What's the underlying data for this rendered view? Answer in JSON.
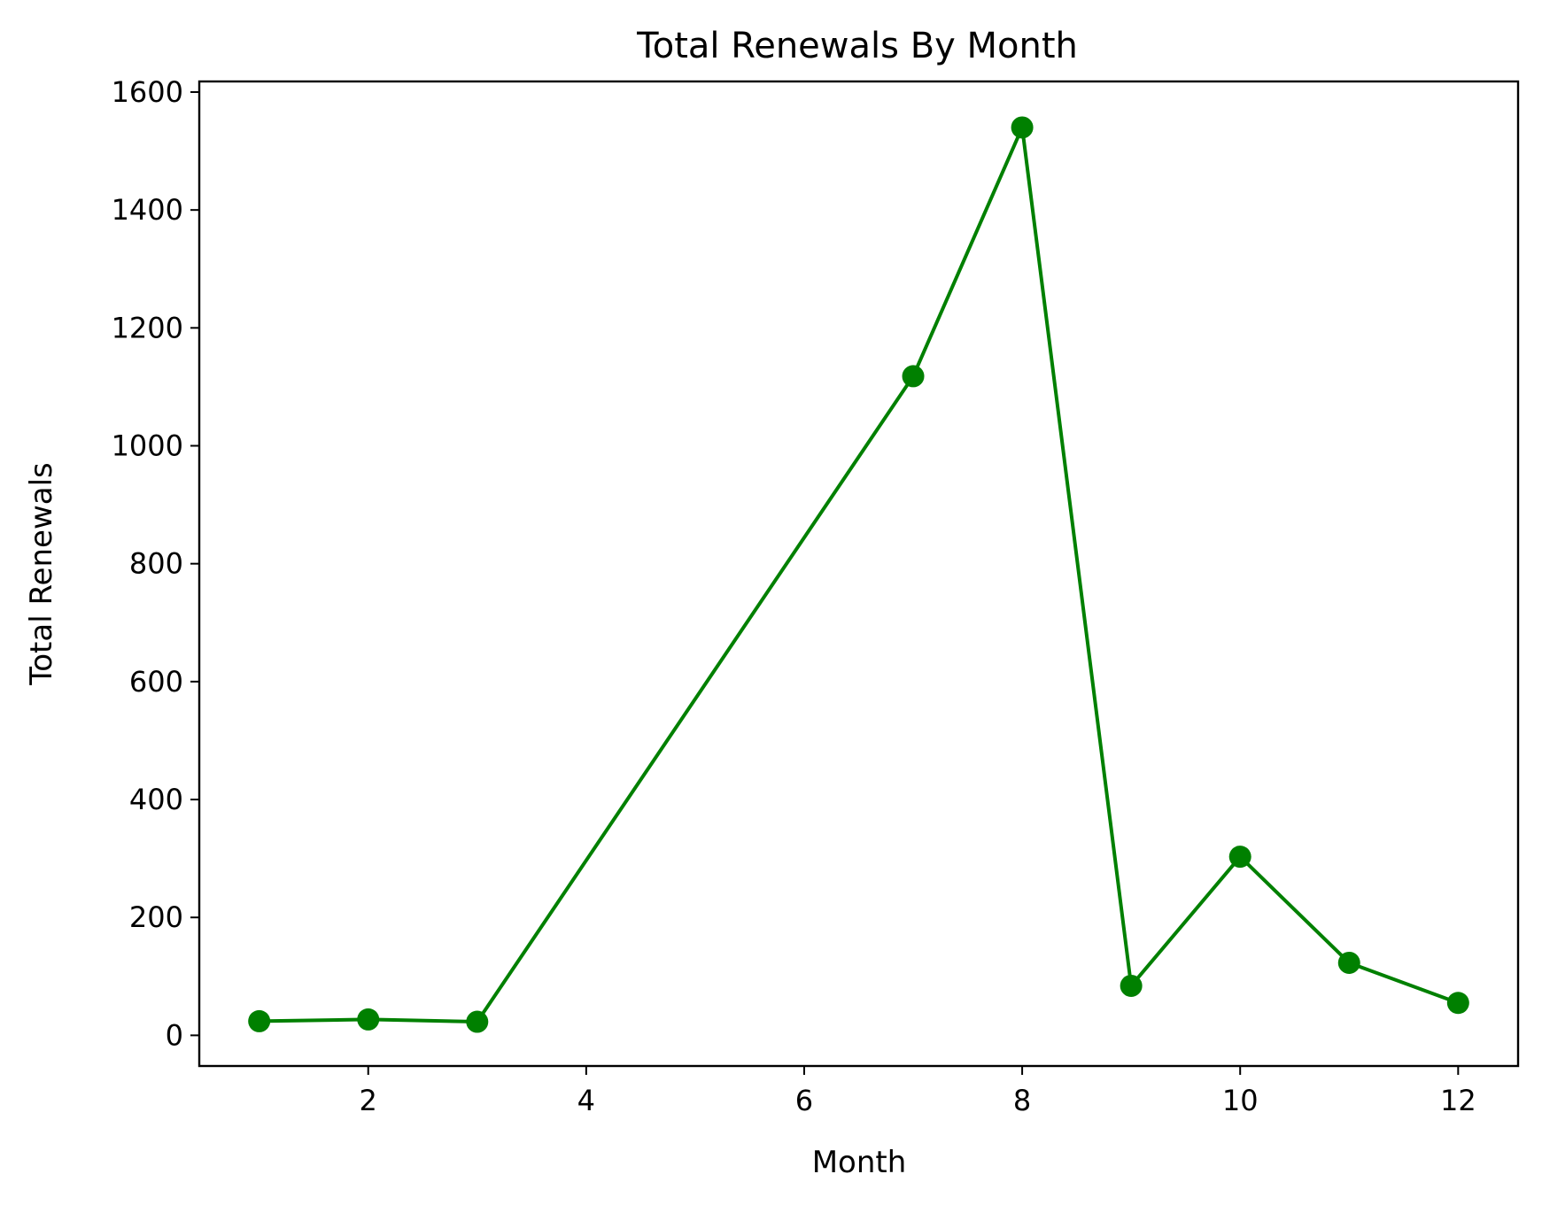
{
  "chart_data": {
    "type": "line",
    "title": "Total Renewals By Month",
    "xlabel": "Month",
    "ylabel": "Total Renewals",
    "xlim": [
      0.45,
      12.55
    ],
    "ylim": [
      -52,
      1618
    ],
    "xticks": [
      2,
      4,
      6,
      8,
      10,
      12
    ],
    "xtick_labels": [
      "2",
      "4",
      "6",
      "8",
      "10",
      "12"
    ],
    "yticks": [
      0,
      200,
      400,
      600,
      800,
      1000,
      1200,
      1400,
      1600
    ],
    "ytick_labels": [
      "0",
      "200",
      "400",
      "600",
      "800",
      "1000",
      "1200",
      "1400",
      "1600"
    ],
    "grid": false,
    "series": [
      {
        "color": "#008000",
        "x": [
          1,
          2,
          3,
          7,
          8,
          9,
          10,
          11,
          12
        ],
        "y": [
          24,
          27,
          23,
          1118,
          1540,
          84,
          303,
          123,
          55
        ]
      }
    ]
  }
}
